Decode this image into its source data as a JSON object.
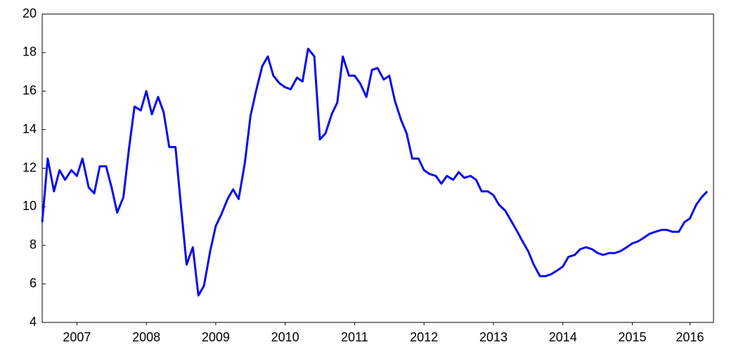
{
  "chart_data": {
    "type": "line",
    "x": [
      2007.0,
      2007.08,
      2007.17,
      2007.25,
      2007.33,
      2007.42,
      2007.5,
      2007.58,
      2007.67,
      2007.75,
      2007.83,
      2007.92,
      2008.0,
      2008.08,
      2008.17,
      2008.25,
      2008.33,
      2008.42,
      2008.5,
      2008.58,
      2008.67,
      2008.75,
      2008.83,
      2008.92,
      2009.0,
      2009.08,
      2009.17,
      2009.25,
      2009.33,
      2009.42,
      2009.5,
      2009.58,
      2009.67,
      2009.75,
      2009.83,
      2009.92,
      2010.0,
      2010.08,
      2010.17,
      2010.25,
      2010.33,
      2010.42,
      2010.5,
      2010.58,
      2010.67,
      2010.75,
      2010.83,
      2010.92,
      2011.0,
      2011.08,
      2011.17,
      2011.25,
      2011.33,
      2011.42,
      2011.5,
      2011.58,
      2011.67,
      2011.75,
      2011.83,
      2011.92,
      2012.0,
      2012.08,
      2012.17,
      2012.25,
      2012.33,
      2012.42,
      2012.5,
      2012.58,
      2012.67,
      2012.75,
      2012.83,
      2012.92,
      2013.0,
      2013.08,
      2013.17,
      2013.25,
      2013.33,
      2013.42,
      2013.5,
      2013.58,
      2013.67,
      2013.75,
      2013.83,
      2013.92,
      2014.0,
      2014.08,
      2014.17,
      2014.25,
      2014.33,
      2014.42,
      2014.5,
      2014.58,
      2014.67,
      2014.75,
      2014.83,
      2014.92,
      2015.0,
      2015.08,
      2015.17,
      2015.25,
      2015.33,
      2015.42,
      2015.5,
      2015.58,
      2015.67,
      2015.75,
      2015.83,
      2015.92,
      2016.0,
      2016.08,
      2016.17,
      2016.25,
      2016.33,
      2016.42,
      2016.5,
      2016.58
    ],
    "series": [
      {
        "color": "#0a0aee",
        "values": [
          9.2,
          12.5,
          10.8,
          11.9,
          11.4,
          11.9,
          11.6,
          12.5,
          11.0,
          10.7,
          12.1,
          12.1,
          11.0,
          9.7,
          10.5,
          13.0,
          15.2,
          15.0,
          16.0,
          14.8,
          15.7,
          14.9,
          13.1,
          13.1,
          10.0,
          7.0,
          7.9,
          5.4,
          5.9,
          7.7,
          9.0,
          9.6,
          10.4,
          10.9,
          10.4,
          12.3,
          14.7,
          16.0,
          17.3,
          17.8,
          16.8,
          16.4,
          16.2,
          16.1,
          16.7,
          16.5,
          18.2,
          17.8,
          13.5,
          13.8,
          14.8,
          15.4,
          17.8,
          16.8,
          16.8,
          16.4,
          15.7,
          17.1,
          17.2,
          16.6,
          16.8,
          15.5,
          14.5,
          13.8,
          12.5,
          12.5,
          11.9,
          11.7,
          11.6,
          11.2,
          11.6,
          11.4,
          11.8,
          11.5,
          11.6,
          11.4,
          10.8,
          10.8,
          10.6,
          10.1,
          9.8,
          9.3,
          8.8,
          8.2,
          7.7,
          7.0,
          6.4,
          6.4,
          6.5,
          6.7,
          6.9,
          7.4,
          7.5,
          7.8,
          7.9,
          7.8,
          7.6,
          7.5,
          7.6,
          7.6,
          7.7,
          7.9,
          8.1,
          8.2,
          8.4,
          8.6,
          8.7,
          8.8,
          8.8,
          8.7,
          8.7,
          9.2,
          9.4,
          10.1,
          10.5,
          10.8
        ]
      }
    ],
    "xlim": [
      2007,
      2016.67
    ],
    "xticks": [
      {
        "value": 2007.5,
        "label": "2007"
      },
      {
        "value": 2008.5,
        "label": "2008"
      },
      {
        "value": 2009.5,
        "label": "2009"
      },
      {
        "value": 2010.5,
        "label": "2010"
      },
      {
        "value": 2011.5,
        "label": "2011"
      },
      {
        "value": 2012.5,
        "label": "2012"
      },
      {
        "value": 2013.5,
        "label": "2013"
      },
      {
        "value": 2014.5,
        "label": "2014"
      },
      {
        "value": 2015.5,
        "label": "2015"
      },
      {
        "value": 2016.33,
        "label": "2016"
      }
    ],
    "ylim": [
      4,
      20
    ],
    "yticks": [
      4,
      6,
      8,
      10,
      12,
      14,
      16,
      18,
      20
    ]
  }
}
